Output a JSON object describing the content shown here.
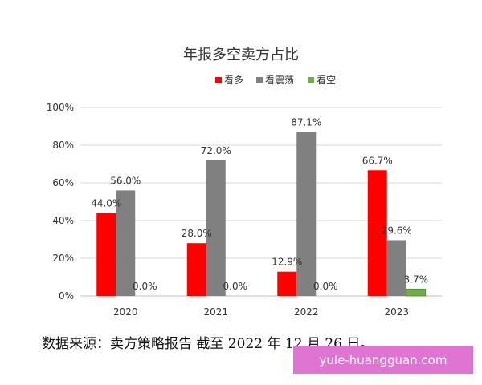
{
  "chart_data": {
    "type": "bar",
    "title": "年报多空卖方占比",
    "categories": [
      "2020",
      "2021",
      "2022",
      "2023"
    ],
    "series": [
      {
        "name": "看多",
        "color": "#ff0000",
        "values": [
          44.0,
          28.0,
          12.9,
          66.7
        ]
      },
      {
        "name": "看震荡",
        "color": "#808080",
        "values": [
          56.0,
          72.0,
          87.1,
          29.6
        ]
      },
      {
        "name": "看空",
        "color": "#70ad47",
        "values": [
          0.0,
          0.0,
          0.0,
          3.7
        ]
      }
    ],
    "data_labels": [
      [
        "44.0%",
        "28.0%",
        "12.9%",
        "66.7%"
      ],
      [
        "56.0%",
        "72.0%",
        "87.1%",
        "29.6%"
      ],
      [
        "0.0%",
        "0.0%",
        "0.0%",
        "3.7%"
      ]
    ],
    "yticks": [
      "0%",
      "20%",
      "40%",
      "60%",
      "80%",
      "100%"
    ],
    "ylim": [
      0,
      100
    ],
    "grid": true,
    "legend_position": "top-right"
  },
  "footer": {
    "source": "数据来源：卖方策略报告 截至 2022 年 12 月 26 日。",
    "watermark": "yule-huangguan.com"
  }
}
